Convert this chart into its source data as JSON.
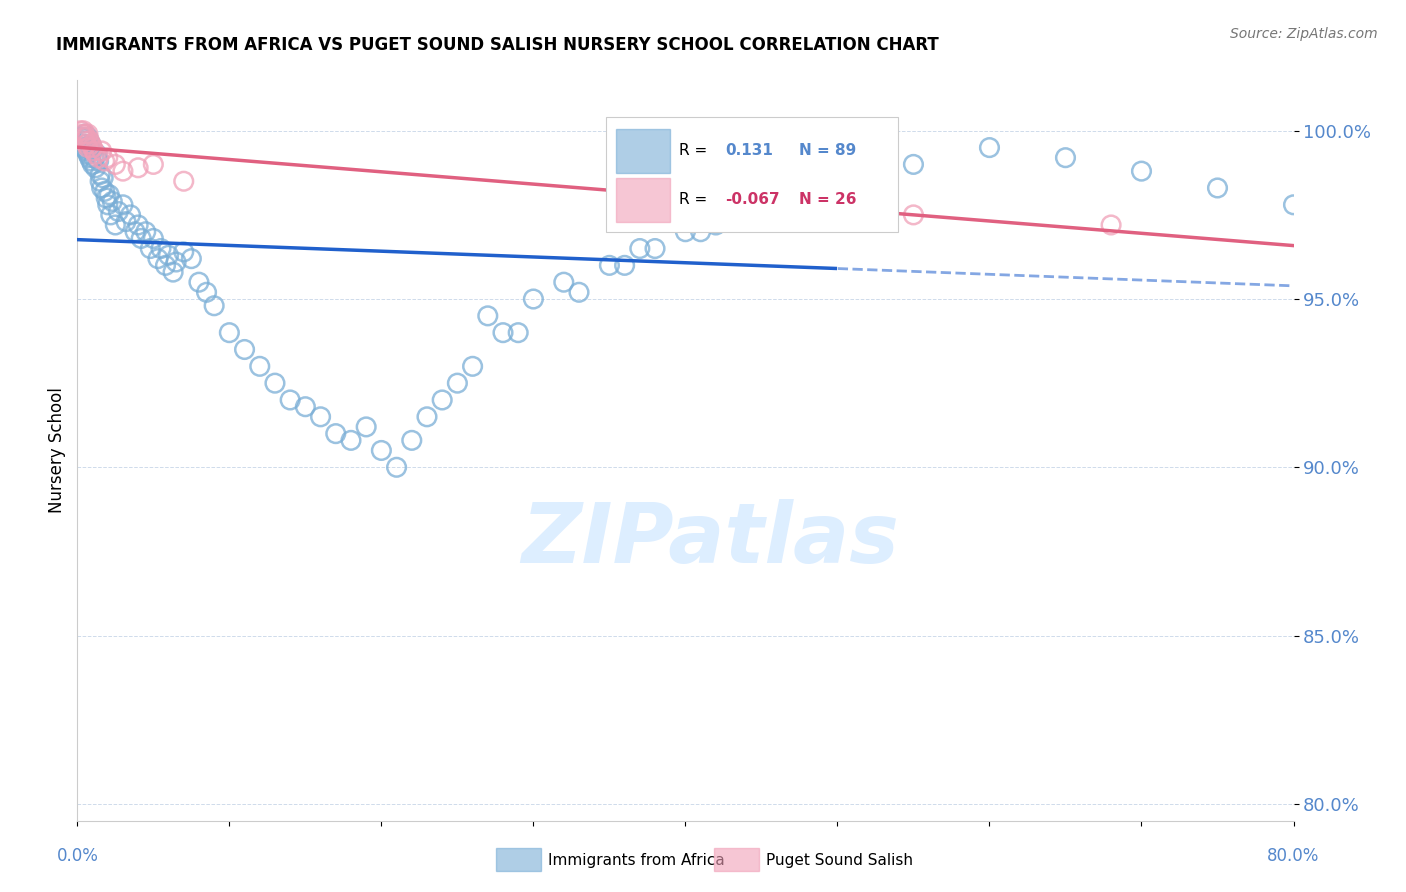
{
  "title": "IMMIGRANTS FROM AFRICA VS PUGET SOUND SALISH NURSERY SCHOOL CORRELATION CHART",
  "source": "Source: ZipAtlas.com",
  "ylabel": "Nursery School",
  "ytick_vals": [
    80,
    85,
    90,
    95,
    100
  ],
  "ytick_labels": [
    "80.0%",
    "85.0%",
    "90.0%",
    "95.0%",
    "100.0%"
  ],
  "xlim": [
    0.0,
    80.0
  ],
  "ylim": [
    79.5,
    101.5
  ],
  "R_blue": 0.131,
  "N_blue": 89,
  "R_pink": -0.067,
  "N_pink": 26,
  "legend_label_blue": "Immigrants from Africa",
  "legend_label_pink": "Puget Sound Salish",
  "blue_scatter_color": "#7aaed6",
  "pink_scatter_color": "#f0a0b8",
  "blue_line_color": "#2060cc",
  "pink_line_color": "#e06080",
  "grid_color": "#b0c4de",
  "title_color": "#000000",
  "ytick_color": "#5588cc",
  "xtick_color": "#5588cc",
  "watermark_color": "#ddeeff",
  "legend_R_color": "#000000",
  "legend_val_blue": "#5588cc",
  "legend_val_pink": "#cc3366",
  "blue_line_solid_end": 50,
  "blue_scatter_x": [
    0.3,
    0.4,
    0.5,
    0.5,
    0.6,
    0.6,
    0.7,
    0.7,
    0.8,
    0.8,
    0.9,
    0.9,
    1.0,
    1.0,
    1.1,
    1.2,
    1.3,
    1.4,
    1.5,
    1.5,
    1.6,
    1.7,
    1.8,
    1.9,
    2.0,
    2.1,
    2.2,
    2.3,
    2.5,
    2.7,
    3.0,
    3.2,
    3.5,
    3.8,
    4.0,
    4.2,
    4.5,
    4.8,
    5.0,
    5.3,
    5.5,
    5.8,
    6.0,
    6.3,
    6.5,
    7.0,
    7.5,
    8.0,
    8.5,
    9.0,
    10.0,
    11.0,
    12.0,
    13.0,
    14.0,
    15.0,
    16.0,
    17.0,
    18.0,
    19.0,
    20.0,
    21.0,
    22.0,
    23.0,
    24.0,
    25.0,
    26.0,
    28.0,
    30.0,
    32.0,
    35.0,
    38.0,
    40.0,
    43.0,
    46.0,
    50.0,
    55.0,
    60.0,
    65.0,
    70.0,
    75.0,
    80.0,
    42.0,
    36.0,
    27.0,
    29.0,
    33.0,
    37.0,
    41.0
  ],
  "blue_scatter_y": [
    99.8,
    99.5,
    99.9,
    99.6,
    99.7,
    99.4,
    99.8,
    99.3,
    99.5,
    99.2,
    99.6,
    99.1,
    99.4,
    99.0,
    99.2,
    98.9,
    99.3,
    99.1,
    98.7,
    98.5,
    98.3,
    98.6,
    98.2,
    98.0,
    97.8,
    98.1,
    97.5,
    97.9,
    97.2,
    97.6,
    97.8,
    97.3,
    97.5,
    97.0,
    97.2,
    96.8,
    97.0,
    96.5,
    96.8,
    96.2,
    96.5,
    96.0,
    96.3,
    95.8,
    96.1,
    96.4,
    96.2,
    95.5,
    95.2,
    94.8,
    94.0,
    93.5,
    93.0,
    92.5,
    92.0,
    91.8,
    91.5,
    91.0,
    90.8,
    91.2,
    90.5,
    90.0,
    90.8,
    91.5,
    92.0,
    92.5,
    93.0,
    94.0,
    95.0,
    95.5,
    96.0,
    96.5,
    97.0,
    97.5,
    98.0,
    98.5,
    99.0,
    99.5,
    99.2,
    98.8,
    98.3,
    97.8,
    97.2,
    96.0,
    94.5,
    94.0,
    95.2,
    96.5,
    97.0
  ],
  "pink_scatter_x": [
    0.2,
    0.3,
    0.4,
    0.4,
    0.5,
    0.5,
    0.6,
    0.6,
    0.7,
    0.7,
    0.8,
    0.9,
    1.0,
    1.1,
    1.2,
    1.4,
    1.6,
    1.8,
    2.0,
    2.5,
    3.0,
    4.0,
    5.0,
    7.0,
    55.0,
    68.0
  ],
  "pink_scatter_y": [
    100.0,
    99.9,
    99.8,
    100.0,
    99.9,
    99.7,
    99.8,
    99.6,
    99.9,
    99.5,
    99.7,
    99.6,
    99.5,
    99.4,
    99.3,
    99.2,
    99.4,
    99.1,
    99.2,
    99.0,
    98.8,
    98.9,
    99.0,
    98.5,
    97.5,
    97.2
  ]
}
